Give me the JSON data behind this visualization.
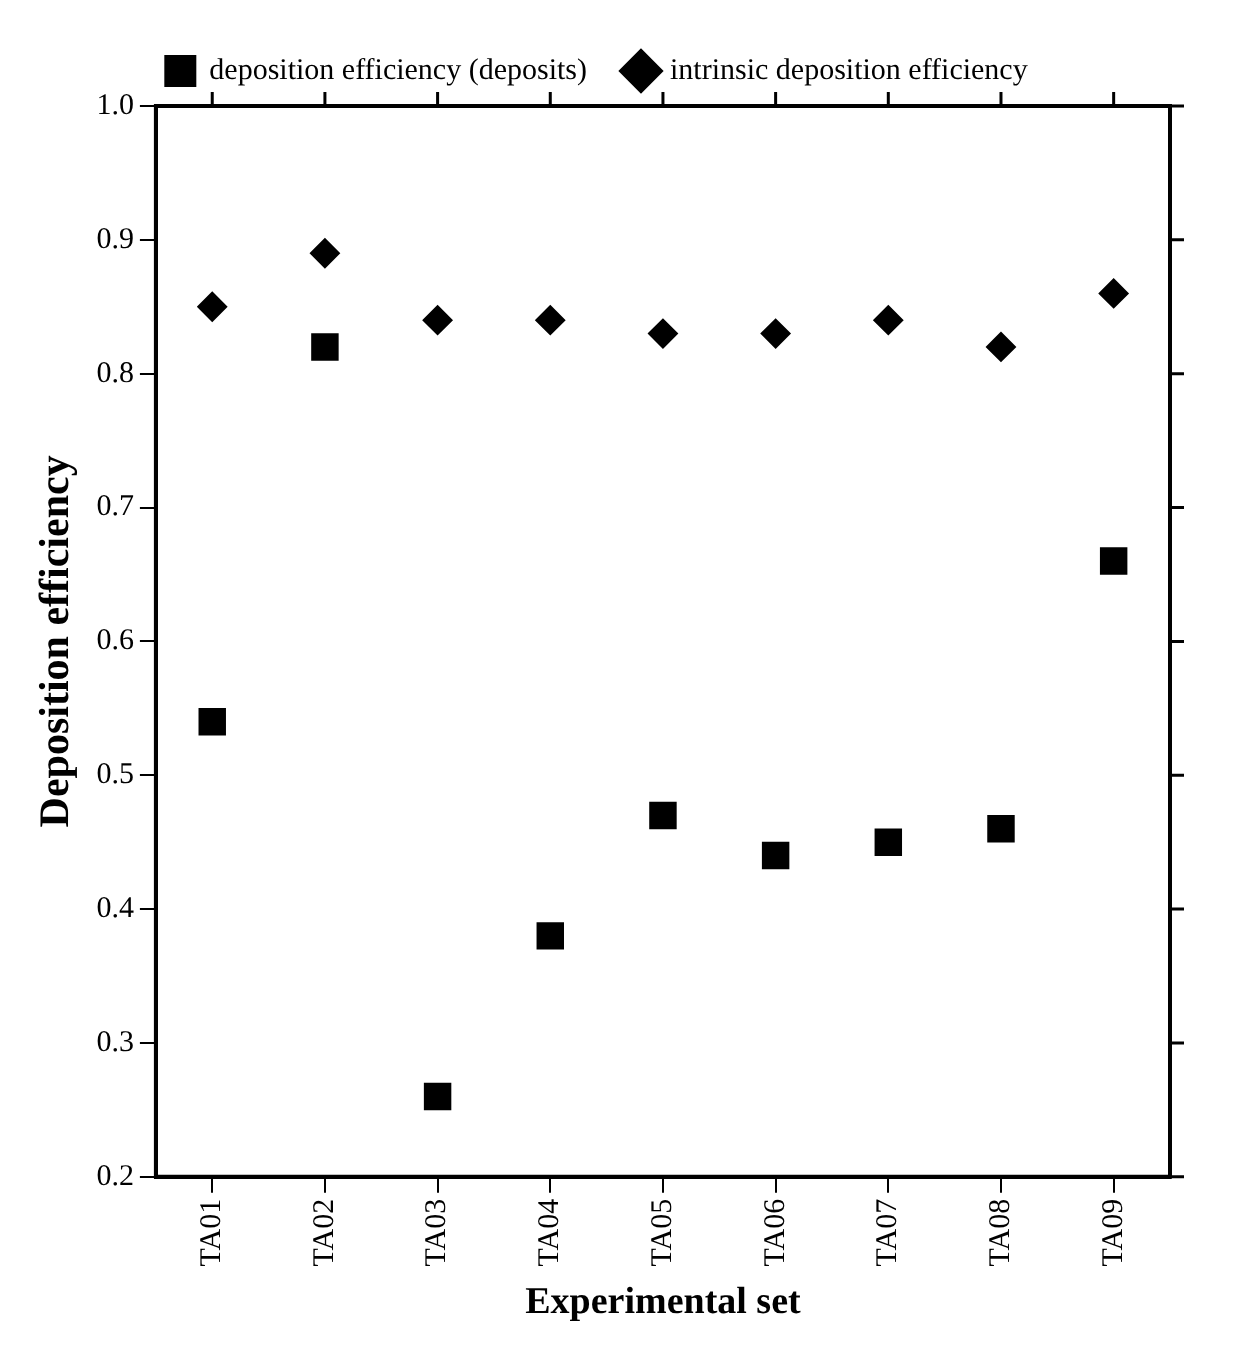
{
  "chart_data": {
    "type": "scatter",
    "xlabel": "Experimental set",
    "ylabel": "Deposition efficiency",
    "categories": [
      "TA01",
      "TA02",
      "TA03",
      "TA04",
      "TA05",
      "TA06",
      "TA07",
      "TA08",
      "TA09"
    ],
    "series": [
      {
        "name": "deposition efficiency (deposits)",
        "color": "#000000",
        "marker": "square",
        "values": [
          0.54,
          0.82,
          0.26,
          0.38,
          0.47,
          0.44,
          0.45,
          0.46,
          0.66
        ]
      },
      {
        "name": "intrinsic deposition efficiency",
        "color": "#000000",
        "marker": "diamond",
        "values": [
          0.85,
          0.89,
          0.84,
          0.84,
          0.83,
          0.83,
          0.84,
          0.82,
          0.86
        ]
      }
    ],
    "ylim": [
      0.2,
      1.0
    ],
    "yticks": [
      {
        "value": 0.2,
        "label": "0.2"
      },
      {
        "value": 0.3,
        "label": "0.3"
      },
      {
        "value": 0.4,
        "label": "0.4"
      },
      {
        "value": 0.5,
        "label": "0.5"
      },
      {
        "value": 0.6,
        "label": "0.6"
      },
      {
        "value": 0.7,
        "label": "0.7"
      },
      {
        "value": 0.8,
        "label": "0.8"
      },
      {
        "value": 0.9,
        "label": "0.9"
      },
      {
        "value": 1.0,
        "label": "1.0"
      }
    ],
    "grid": false,
    "legend": "top"
  }
}
